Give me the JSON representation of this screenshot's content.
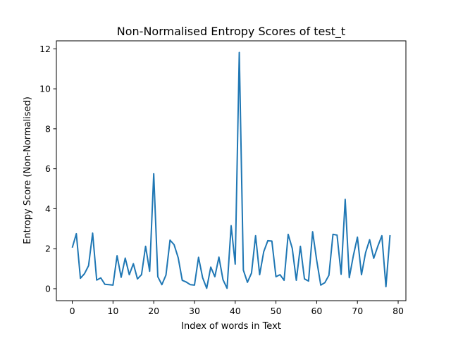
{
  "chart_data": {
    "type": "line",
    "title": "Non-Normalised Entropy Scores of test_t",
    "xlabel": "Index of words in Text",
    "ylabel": "Entropy Score (Non-Normalised)",
    "xlim": [
      -3.9,
      81.9
    ],
    "ylim": [
      -0.6,
      12.4
    ],
    "xticks": [
      0,
      10,
      20,
      30,
      40,
      50,
      60,
      70,
      80
    ],
    "xtick_labels": [
      "0",
      "10",
      "20",
      "30",
      "40",
      "50",
      "60",
      "70",
      "80"
    ],
    "yticks": [
      0,
      2,
      4,
      6,
      8,
      10,
      12
    ],
    "ytick_labels": [
      "0",
      "2",
      "4",
      "6",
      "8",
      "10",
      "12"
    ],
    "grid": false,
    "legend": "none",
    "series": [
      {
        "color": "#1f77b4",
        "x": [
          0,
          1,
          2,
          3,
          4,
          5,
          6,
          7,
          8,
          9,
          10,
          11,
          12,
          13,
          14,
          15,
          16,
          17,
          18,
          19,
          20,
          21,
          22,
          23,
          24,
          25,
          26,
          27,
          28,
          29,
          30,
          31,
          32,
          33,
          34,
          35,
          36,
          37,
          38,
          39,
          40,
          41,
          42,
          43,
          44,
          45,
          46,
          47,
          48,
          49,
          50,
          51,
          52,
          53,
          54,
          55,
          56,
          57,
          58,
          59,
          60,
          61,
          62,
          63,
          64,
          65,
          66,
          67,
          68,
          69,
          70,
          71,
          72,
          73,
          74,
          75,
          76,
          77,
          78
        ],
        "values": [
          2.05,
          2.75,
          0.52,
          0.75,
          1.15,
          2.78,
          0.43,
          0.54,
          0.22,
          0.2,
          0.18,
          1.65,
          0.57,
          1.53,
          0.7,
          1.25,
          0.49,
          0.7,
          2.12,
          0.87,
          5.75,
          0.6,
          0.2,
          0.68,
          2.43,
          2.2,
          1.55,
          0.42,
          0.33,
          0.2,
          0.18,
          1.57,
          0.55,
          0.02,
          1.08,
          0.6,
          1.58,
          0.45,
          0.02,
          3.15,
          1.23,
          11.82,
          0.93,
          0.32,
          0.78,
          2.65,
          0.7,
          1.85,
          2.4,
          2.38,
          0.6,
          0.7,
          0.42,
          2.72,
          2.02,
          0.42,
          2.12,
          0.49,
          0.38,
          2.85,
          1.42,
          0.18,
          0.3,
          0.67,
          2.72,
          2.68,
          0.72,
          4.47,
          0.55,
          1.65,
          2.58,
          0.7,
          1.8,
          2.45,
          1.52,
          2.12,
          2.65,
          0.1,
          2.68
        ]
      }
    ]
  }
}
